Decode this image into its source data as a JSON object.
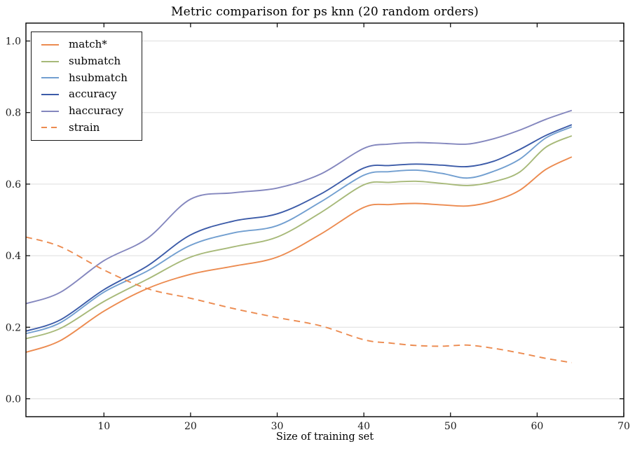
{
  "chart_data": {
    "type": "line",
    "title": "Metric comparison for ps knn (20 random orders)",
    "xlabel": "Size of training set",
    "ylabel": "",
    "xlim": [
      1,
      70
    ],
    "ylim": [
      -0.05,
      1.05
    ],
    "x_ticks": [
      10,
      20,
      30,
      40,
      50,
      60,
      70
    ],
    "y_ticks": [
      0.0,
      0.2,
      0.4,
      0.6,
      0.8,
      1.0
    ],
    "y_tick_labels": [
      "0.0",
      "0.2",
      "0.4",
      "0.6",
      "0.8",
      "1.0"
    ],
    "grid": "horizontal-only",
    "grid_color": "#dddddd",
    "spine_color": "#000000",
    "tick_label_color": "#1a1a1a",
    "legend_position": "upper-left",
    "x": [
      1,
      5,
      10,
      15,
      20,
      25,
      30,
      35,
      40,
      43,
      46,
      49,
      52,
      55,
      58,
      61,
      64
    ],
    "series": [
      {
        "name": "match*",
        "color": "#EC8B50",
        "style": "solid",
        "values": [
          0.13,
          0.163,
          0.245,
          0.308,
          0.348,
          0.371,
          0.396,
          0.46,
          0.535,
          0.543,
          0.546,
          0.542,
          0.539,
          0.553,
          0.583,
          0.641,
          0.676
        ]
      },
      {
        "name": "submatch",
        "color": "#A7B979",
        "style": "solid",
        "values": [
          0.168,
          0.197,
          0.272,
          0.334,
          0.396,
          0.425,
          0.452,
          0.52,
          0.598,
          0.605,
          0.608,
          0.602,
          0.596,
          0.607,
          0.634,
          0.703,
          0.735
        ]
      },
      {
        "name": "hsubmatch",
        "color": "#729FD0",
        "style": "solid",
        "values": [
          0.182,
          0.213,
          0.298,
          0.357,
          0.429,
          0.464,
          0.484,
          0.55,
          0.625,
          0.635,
          0.639,
          0.63,
          0.617,
          0.636,
          0.67,
          0.729,
          0.76
        ]
      },
      {
        "name": "accuracy",
        "color": "#3C5BA8",
        "style": "solid",
        "values": [
          0.189,
          0.221,
          0.305,
          0.371,
          0.458,
          0.497,
          0.517,
          0.572,
          0.645,
          0.652,
          0.656,
          0.653,
          0.649,
          0.664,
          0.697,
          0.736,
          0.766
        ]
      },
      {
        "name": "haccuracy",
        "color": "#8487BE",
        "style": "solid",
        "values": [
          0.266,
          0.298,
          0.386,
          0.448,
          0.558,
          0.576,
          0.589,
          0.628,
          0.7,
          0.712,
          0.716,
          0.714,
          0.712,
          0.727,
          0.751,
          0.781,
          0.806
        ]
      },
      {
        "name": "strain",
        "color": "#EC8B50",
        "style": "dashed",
        "values": [
          0.452,
          0.425,
          0.36,
          0.308,
          0.281,
          0.252,
          0.227,
          0.204,
          0.165,
          0.156,
          0.149,
          0.147,
          0.15,
          0.141,
          0.128,
          0.113,
          0.101
        ]
      }
    ]
  }
}
